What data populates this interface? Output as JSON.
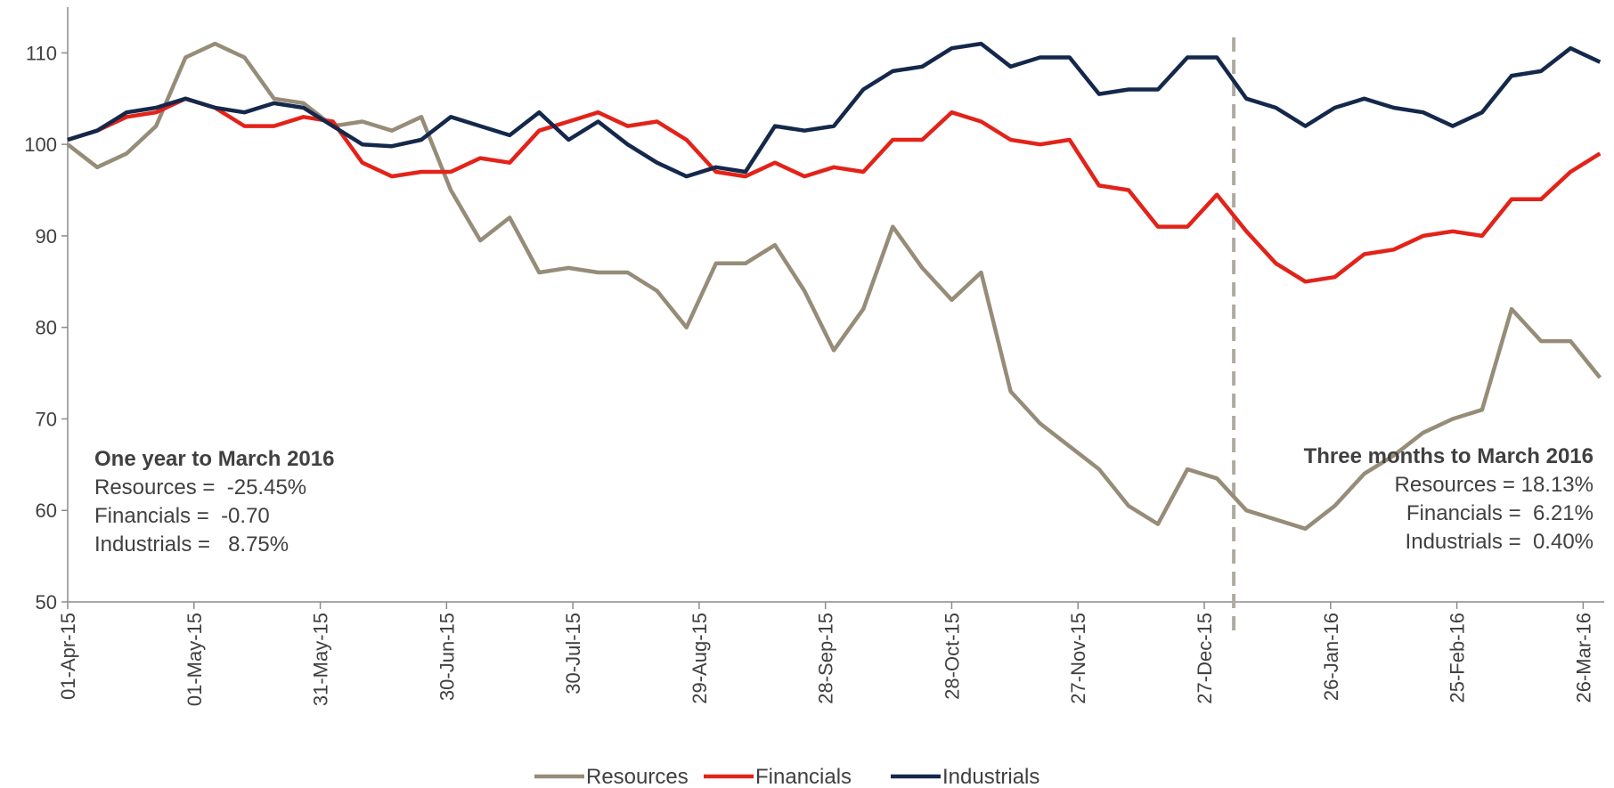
{
  "chart_data": {
    "type": "line",
    "x": [
      "01-Apr-15",
      "08-Apr-15",
      "15-Apr-15",
      "22-Apr-15",
      "29-Apr-15",
      "06-May-15",
      "13-May-15",
      "20-May-15",
      "27-May-15",
      "03-Jun-15",
      "10-Jun-15",
      "17-Jun-15",
      "24-Jun-15",
      "01-Jul-15",
      "08-Jul-15",
      "15-Jul-15",
      "22-Jul-15",
      "29-Jul-15",
      "05-Aug-15",
      "12-Aug-15",
      "19-Aug-15",
      "26-Aug-15",
      "02-Sep-15",
      "09-Sep-15",
      "16-Sep-15",
      "23-Sep-15",
      "30-Sep-15",
      "07-Oct-15",
      "14-Oct-15",
      "21-Oct-15",
      "28-Oct-15",
      "04-Nov-15",
      "11-Nov-15",
      "18-Nov-15",
      "25-Nov-15",
      "02-Dec-15",
      "09-Dec-15",
      "16-Dec-15",
      "23-Dec-15",
      "30-Dec-15",
      "06-Jan-16",
      "13-Jan-16",
      "20-Jan-16",
      "27-Jan-16",
      "03-Feb-16",
      "10-Feb-16",
      "17-Feb-16",
      "24-Feb-16",
      "02-Mar-16",
      "09-Mar-16",
      "16-Mar-16",
      "23-Mar-16",
      "30-Mar-16"
    ],
    "series": [
      {
        "name": "Resources",
        "color": "#968c78",
        "values": [
          100,
          97.5,
          99,
          102,
          109.5,
          111,
          109.5,
          105,
          104.5,
          102,
          102.5,
          101.5,
          103,
          95,
          89.5,
          92,
          86,
          86.5,
          86,
          86,
          84,
          80,
          87,
          87,
          89,
          84,
          77.5,
          82,
          91,
          86.5,
          83,
          86,
          73,
          69.5,
          67,
          64.5,
          60.5,
          58.5,
          64.5,
          63.5,
          60,
          59,
          58,
          60.5,
          64,
          66,
          68.5,
          70,
          71,
          82,
          78.5,
          78.5,
          74.5
        ]
      },
      {
        "name": "Financials",
        "color": "#e2231a",
        "values": [
          100.5,
          101.5,
          103,
          103.5,
          105,
          104,
          102,
          102,
          103,
          102.5,
          98,
          96.5,
          97,
          97,
          98.5,
          98,
          101.5,
          102.5,
          103.5,
          102,
          102.5,
          100.5,
          97,
          96.5,
          98,
          96.5,
          97.5,
          97,
          100.5,
          100.5,
          103.5,
          102.5,
          100.5,
          100,
          100.5,
          95.5,
          95,
          91,
          91,
          94.5,
          90.5,
          87,
          85,
          85.5,
          88,
          88.5,
          90,
          90.5,
          90,
          94,
          94,
          97,
          99
        ]
      },
      {
        "name": "Industrials",
        "color": "#14284b",
        "values": [
          100.5,
          101.5,
          103.5,
          104,
          105,
          104,
          103.5,
          104.5,
          104,
          102,
          100,
          99.8,
          100.5,
          103,
          102,
          101,
          103.5,
          100.5,
          102.5,
          100,
          98,
          96.5,
          97.5,
          97,
          102,
          101.5,
          102,
          106,
          108,
          108.5,
          110.5,
          111,
          108.5,
          109.5,
          109.5,
          105.5,
          106,
          106,
          109.5,
          109.5,
          105,
          104,
          102,
          104,
          105,
          104,
          103.5,
          102,
          103.5,
          107.5,
          108,
          110.5,
          109
        ]
      }
    ],
    "xlim": [
      "01-Apr-15",
      "31-Mar-16"
    ],
    "xticks": [
      "01-Apr-15",
      "01-May-15",
      "31-May-15",
      "30-Jun-15",
      "30-Jul-15",
      "29-Aug-15",
      "28-Sep-15",
      "28-Oct-15",
      "27-Nov-15",
      "27-Dec-15",
      "26-Jan-16",
      "25-Feb-16",
      "26-Mar-16"
    ],
    "ylim": [
      50,
      115
    ],
    "yticks": [
      50,
      60,
      70,
      80,
      90,
      100,
      110
    ],
    "grid": false,
    "vline": "03-Jan-16",
    "legend": "bottom",
    "annotations": [
      {
        "title": "One year to March 2016",
        "lines": [
          "Resources =  -25.45%",
          "Financials =  -0.70",
          "Industrials =   8.75%"
        ]
      },
      {
        "title": "Three months to March 2016",
        "lines": [
          "Resources = 18.13%",
          "Financials =  6.21%",
          "Industrials =  0.40%"
        ]
      }
    ]
  }
}
